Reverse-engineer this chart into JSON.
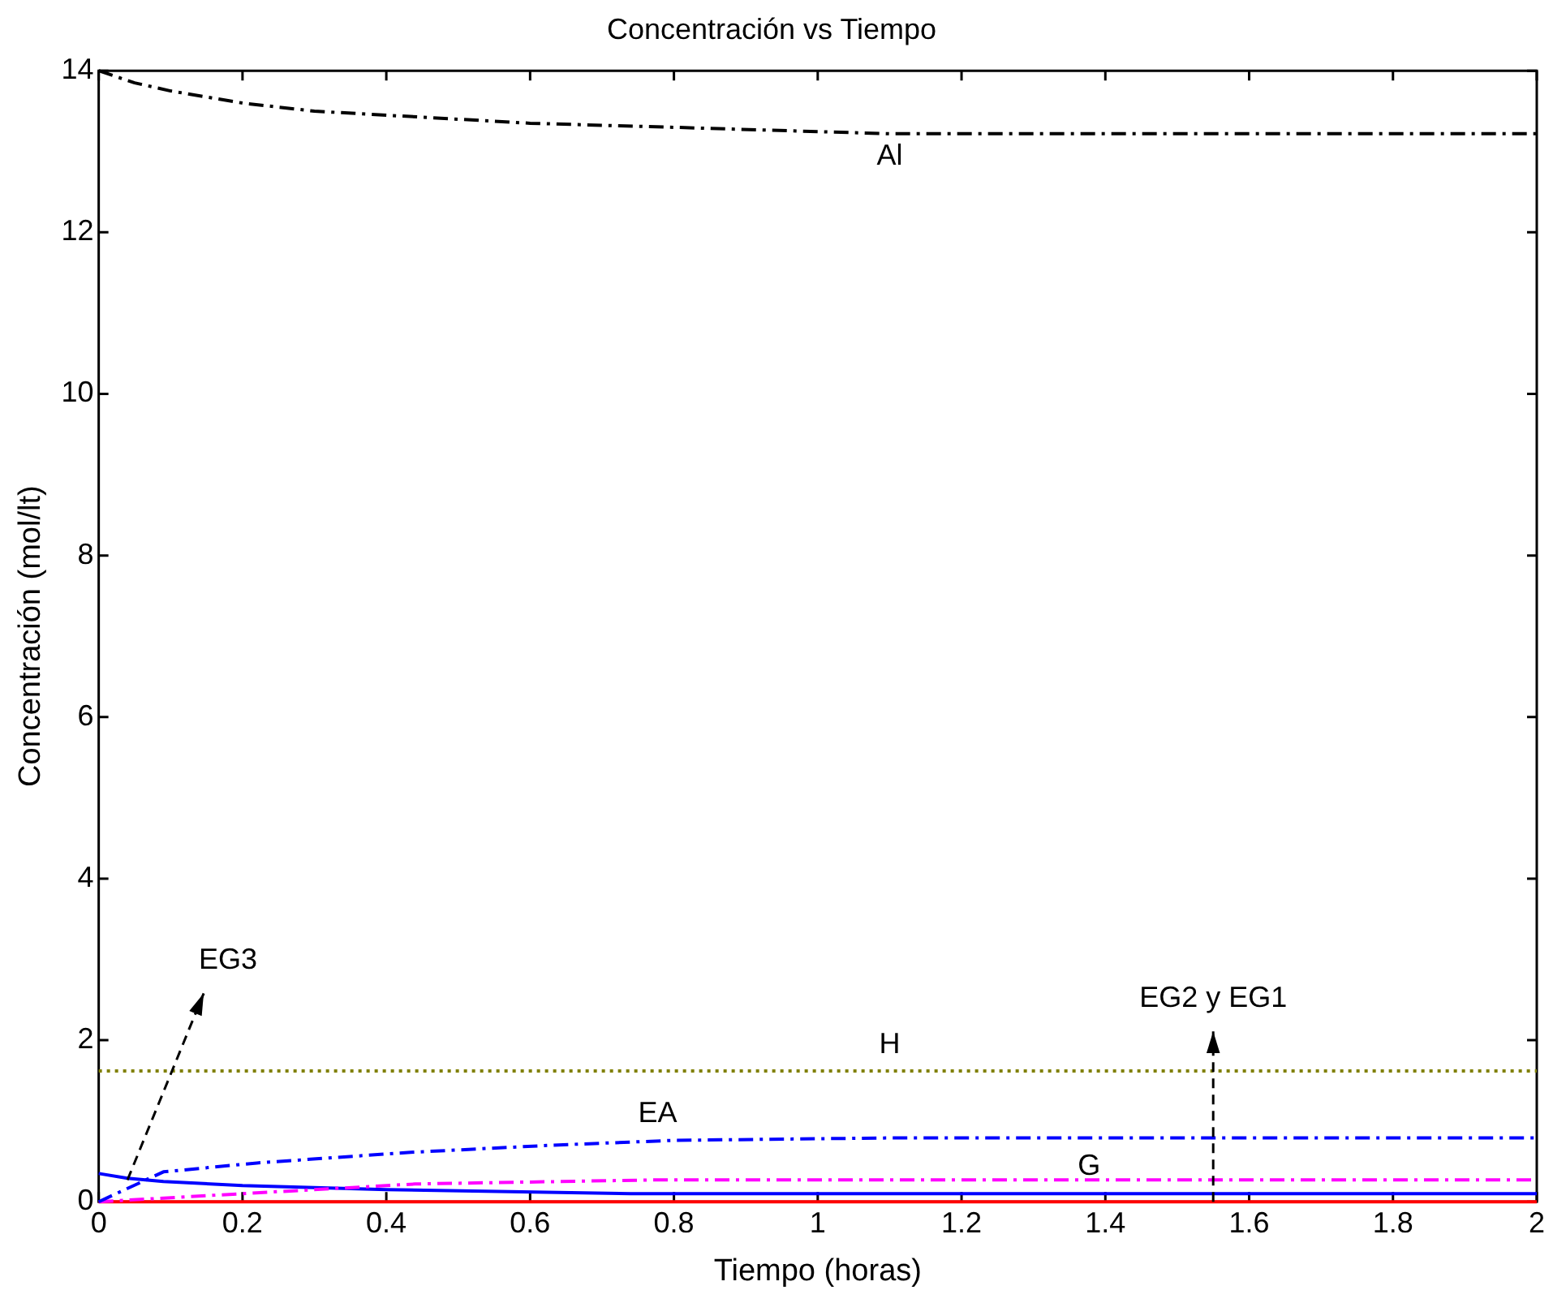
{
  "chart_data": {
    "type": "line",
    "title": "Concentración vs Tiempo",
    "xlabel": "Tiempo (horas)",
    "ylabel": "Concentración (mol/lt)",
    "xlim": [
      0,
      2
    ],
    "xticks": [
      0,
      0.2,
      0.4,
      0.6,
      0.8,
      1,
      1.2,
      1.4,
      1.6,
      1.8,
      2
    ],
    "ylim": [
      0,
      14
    ],
    "yticks": [
      0,
      2,
      4,
      6,
      8,
      10,
      12,
      14
    ],
    "grid": false,
    "legend": false,
    "marker": "none",
    "series": [
      {
        "color": "#000000",
        "line_style": "dashed",
        "x": [
          0,
          0.05,
          0.1,
          0.2,
          0.3,
          0.4,
          0.6,
          0.8,
          1.1,
          2
        ],
        "values": [
          14,
          13.85,
          13.75,
          13.6,
          13.5,
          13.45,
          13.35,
          13.3,
          13.22,
          13.22
        ]
      },
      {
        "color": "#808000",
        "line_style": "dotted",
        "x": [
          0,
          2
        ],
        "values": [
          1.62,
          1.62
        ]
      },
      {
        "color": "#0000ff",
        "line_style": "dashed",
        "x": [
          0,
          0.09,
          0.22,
          0.43,
          0.63,
          0.8,
          1.1,
          2
        ],
        "values": [
          0,
          0.37,
          0.48,
          0.61,
          0.7,
          0.76,
          0.79,
          0.79
        ]
      },
      {
        "color": "#ff00ff",
        "line_style": "dashed",
        "x": [
          0,
          0.2,
          0.44,
          0.77,
          2
        ],
        "values": [
          0,
          0.1,
          0.22,
          0.27,
          0.27
        ]
      },
      {
        "color": "#0000ff",
        "line_style": "solid",
        "x": [
          0,
          0.04,
          0.09,
          0.2,
          0.4,
          0.74,
          2
        ],
        "values": [
          0.35,
          0.29,
          0.25,
          0.2,
          0.15,
          0.1,
          0.1
        ]
      },
      {
        "color": "#ff0000",
        "line_style": "solid",
        "x": [
          0,
          2
        ],
        "values": [
          0,
          0
        ]
      }
    ],
    "annotations": [
      {
        "text": "Al",
        "x": 1.1,
        "y": 13.22
      },
      {
        "text": "H",
        "x": 1.1,
        "y": 1.62
      },
      {
        "text": "EA",
        "x": 0.8,
        "y": 0.76
      },
      {
        "text": "G",
        "x": 1.4,
        "y": 0.79
      },
      {
        "text": "EG3",
        "x": 0.04,
        "y": 0.27
      },
      {
        "text": "EG2 y EG1",
        "x": 1.55,
        "y": 0
      }
    ]
  }
}
